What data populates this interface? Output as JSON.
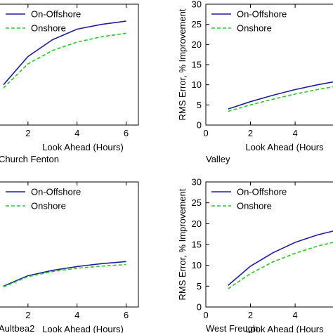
{
  "chart_data": [
    {
      "type": "line",
      "caption": "Church Fenton",
      "xlabel": "Look Ahead (Hours)",
      "ylabel": "",
      "xticks": [
        2,
        4,
        6
      ],
      "yticks": [],
      "xlim": [
        0,
        6.5
      ],
      "ylim": [
        0,
        30
      ],
      "legend": "top-left",
      "series": [
        {
          "name": "On-Offshore",
          "color": "#1f1f9e",
          "style": "solid",
          "x": [
            1,
            2,
            3,
            4,
            5,
            6
          ],
          "y": [
            10,
            17,
            21.2,
            23.8,
            25.0,
            25.8
          ]
        },
        {
          "name": "Onshore",
          "color": "#22cc22",
          "style": "dashed",
          "x": [
            1,
            2,
            3,
            4,
            5,
            6
          ],
          "y": [
            9.2,
            15.2,
            18.5,
            20.6,
            21.9,
            22.8
          ]
        }
      ]
    },
    {
      "type": "line",
      "caption": "Valley",
      "xlabel": "Look Ahead (Hours",
      "ylabel": "RMS Error, % Improvement",
      "xticks": [
        0,
        2,
        4
      ],
      "yticks": [
        0,
        5,
        10,
        15,
        20,
        25,
        30
      ],
      "xlim": [
        0,
        6.2
      ],
      "ylim": [
        0,
        30
      ],
      "legend": "top-left",
      "series": [
        {
          "name": "On-Offshore",
          "color": "#1f1f9e",
          "style": "solid",
          "x": [
            1,
            2,
            3,
            4,
            5,
            6
          ],
          "y": [
            4.0,
            5.8,
            7.4,
            8.8,
            10.0,
            11.0
          ]
        },
        {
          "name": "Onshore",
          "color": "#22cc22",
          "style": "dashed",
          "x": [
            1,
            2,
            3,
            4,
            5,
            6
          ],
          "y": [
            3.4,
            5.0,
            6.4,
            7.7,
            8.8,
            9.8
          ]
        }
      ]
    },
    {
      "type": "line",
      "caption": "Aultbea2",
      "xlabel": "Look Ahead (Hours)",
      "ylabel": "",
      "xticks": [
        2,
        4,
        6
      ],
      "yticks": [],
      "xlim": [
        0,
        6.5
      ],
      "ylim": [
        0,
        30
      ],
      "legend": "top-left",
      "series": [
        {
          "name": "On-Offshore",
          "color": "#1f1f9e",
          "style": "solid",
          "x": [
            1,
            2,
            3,
            4,
            5,
            6
          ],
          "y": [
            5.0,
            7.5,
            8.8,
            9.7,
            10.4,
            10.9
          ]
        },
        {
          "name": "Onshore",
          "color": "#22cc22",
          "style": "dashed",
          "x": [
            1,
            2,
            3,
            4,
            5,
            6
          ],
          "y": [
            4.8,
            7.3,
            8.5,
            9.3,
            9.8,
            10.2
          ]
        }
      ]
    },
    {
      "type": "line",
      "caption": "West Freugh",
      "xlabel": "Look Ahead (Hours",
      "ylabel": "RMS Error, % Improvement",
      "xticks": [
        0,
        2,
        4
      ],
      "yticks": [
        0,
        5,
        10,
        15,
        20,
        25,
        30
      ],
      "xlim": [
        0,
        6.2
      ],
      "ylim": [
        0,
        30
      ],
      "legend": "top-left",
      "series": [
        {
          "name": "On-Offshore",
          "color": "#1f1f9e",
          "style": "solid",
          "x": [
            1,
            2,
            3,
            4,
            5,
            6
          ],
          "y": [
            5.2,
            9.8,
            13.0,
            15.5,
            17.3,
            18.6
          ]
        },
        {
          "name": "Onshore",
          "color": "#22cc22",
          "style": "dashed",
          "x": [
            1,
            2,
            3,
            4,
            5,
            6
          ],
          "y": [
            4.4,
            8.0,
            10.8,
            12.9,
            14.6,
            15.9
          ]
        }
      ]
    }
  ]
}
